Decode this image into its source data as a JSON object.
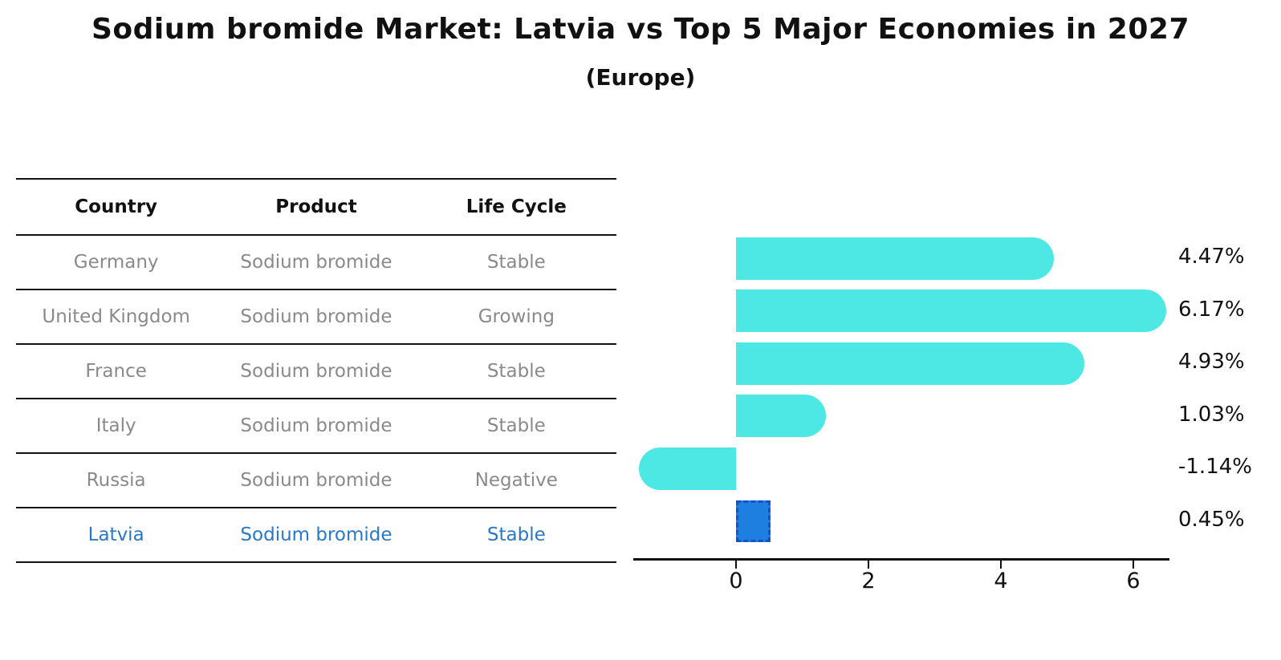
{
  "title": "Sodium bromide Market: Latvia vs Top 5 Major Economies in 2027",
  "subtitle": "(Europe)",
  "table": {
    "headers": [
      "Country",
      "Product",
      "Life Cycle"
    ],
    "rows": [
      {
        "country": "Germany",
        "product": "Sodium bromide",
        "life_cycle": "Stable",
        "highlight": false
      },
      {
        "country": "United Kingdom",
        "product": "Sodium bromide",
        "life_cycle": "Growing",
        "highlight": false
      },
      {
        "country": "France",
        "product": "Sodium bromide",
        "life_cycle": "Stable",
        "highlight": false
      },
      {
        "country": "Italy",
        "product": "Sodium bromide",
        "life_cycle": "Stable",
        "highlight": false
      },
      {
        "country": "Russia",
        "product": "Sodium bromide",
        "life_cycle": "Negative",
        "highlight": false
      },
      {
        "country": "Latvia",
        "product": "Sodium bromide",
        "life_cycle": "Stable",
        "highlight": true
      }
    ]
  },
  "chart_data": {
    "type": "bar",
    "orientation": "horizontal",
    "title": "Sodium bromide Market: Latvia vs Top 5 Major Economies in 2027",
    "subtitle": "(Europe)",
    "categories": [
      "Germany",
      "United Kingdom",
      "France",
      "Italy",
      "Russia",
      "Latvia"
    ],
    "values": [
      4.47,
      6.17,
      4.93,
      1.03,
      -1.14,
      0.45
    ],
    "value_labels": [
      "4.47%",
      "6.17%",
      "4.93%",
      "1.03%",
      "-1.14%",
      "0.45%"
    ],
    "highlight_category": "Latvia",
    "xticks": [
      "0",
      "2",
      "4",
      "6"
    ],
    "xtick_values": [
      0,
      2,
      4,
      6
    ],
    "xlim": [
      -1.7,
      6.55
    ],
    "grid": false,
    "legend": "none",
    "colors": {
      "bar_default": "#4DE8E3",
      "bar_highlight": "#1E7FE0",
      "bar_highlight_border": "#1353C8",
      "row_text": "#8a8a8a",
      "highlight_text": "#2878c8",
      "axis": "#111111"
    }
  }
}
